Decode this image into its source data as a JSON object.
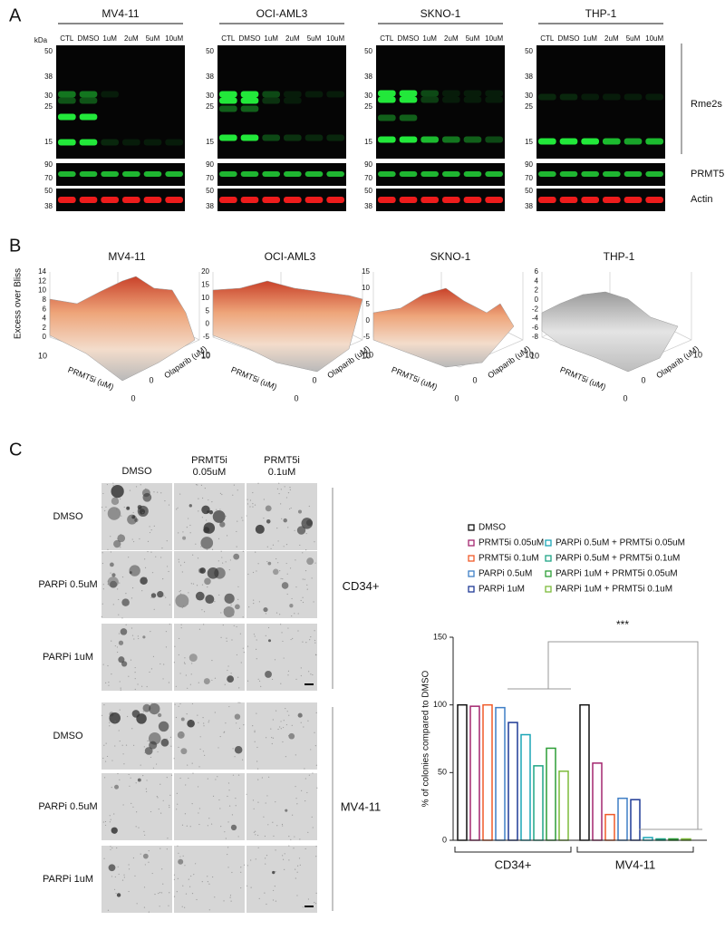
{
  "panel_a": {
    "label": "A",
    "unit": "kDa",
    "cell_lines": [
      "MV4-11",
      "OCI-AML3",
      "SKNO-1",
      "THP-1"
    ],
    "lanes": [
      "CTL",
      "DMSO",
      "1uM",
      "2uM",
      "5uM",
      "10uM"
    ],
    "markers_main": [
      50,
      38,
      30,
      25,
      15
    ],
    "markers_prmt5": [
      90,
      70
    ],
    "markers_actin": [
      50,
      38
    ],
    "bands": [
      "Rme2s",
      "PRMT5",
      "Actin"
    ]
  },
  "panel_b": {
    "label": "B",
    "z_label": "Excess over Bliss",
    "x_label": "PRMT5i (uM)",
    "y_label": "Olaparib (uM)",
    "xticks": [
      10,
      0
    ],
    "yticks": [
      0,
      10
    ],
    "plots": [
      {
        "title": "MV4-11",
        "zticks": [
          14,
          12,
          10,
          8,
          6,
          4,
          2,
          0
        ]
      },
      {
        "title": "OCI-AML3",
        "zticks": [
          20,
          15,
          10,
          5,
          0,
          -5
        ]
      },
      {
        "title": "SKNO-1",
        "zticks": [
          15,
          10,
          5,
          0,
          -5
        ]
      },
      {
        "title": "THP-1",
        "zticks": [
          6,
          4,
          2,
          0,
          -2,
          -4,
          -6,
          -8
        ]
      }
    ]
  },
  "panel_c": {
    "label": "C",
    "columns": [
      [
        "DMSO"
      ],
      [
        "PRMT5i",
        "0.05uM"
      ],
      [
        "PRMT5i",
        "0.1uM"
      ]
    ],
    "groups": [
      {
        "name": "CD34+",
        "rows": [
          "DMSO",
          "PARPi 0.5uM",
          "PARPi 1uM"
        ]
      },
      {
        "name": "MV4-11",
        "rows": [
          "DMSO",
          "PARPi 0.5uM",
          "PARPi 1uM"
        ]
      }
    ]
  },
  "chart_data": {
    "type": "bar",
    "y_label": "% of colonies compared to DMSO",
    "categories": [
      "CD34+",
      "MV4-11"
    ],
    "annotation": "***",
    "ylim": [
      0,
      150
    ],
    "yticks": [
      0,
      50,
      100,
      150
    ],
    "series": [
      {
        "name": "DMSO",
        "color": "#111111",
        "values": [
          100,
          100
        ]
      },
      {
        "name": "PRMT5i 0.05uM",
        "color": "#a3266f",
        "values": [
          99,
          57
        ]
      },
      {
        "name": "PRMT5i 0.1uM",
        "color": "#f05a28",
        "values": [
          100,
          19
        ]
      },
      {
        "name": "PARPi 0.5uM",
        "color": "#3f7fc6",
        "values": [
          98,
          31
        ]
      },
      {
        "name": "PARPi 1uM",
        "color": "#1f3a96",
        "values": [
          87,
          30
        ]
      },
      {
        "name": "PARPi 0.5uM + PRMT5i 0.05uM",
        "color": "#1ba6b6",
        "values": [
          78,
          2
        ]
      },
      {
        "name": "PARPi 0.5uM + PRMT5i 0.1uM",
        "color": "#1ea585",
        "values": [
          55,
          1
        ]
      },
      {
        "name": "PARPi 1uM + PRMT5i 0.05uM",
        "color": "#2c9e36",
        "values": [
          68,
          1
        ]
      },
      {
        "name": "PARPi 1uM + PRMT5i 0.1uM",
        "color": "#7cbb3a",
        "values": [
          51,
          1
        ]
      }
    ]
  }
}
